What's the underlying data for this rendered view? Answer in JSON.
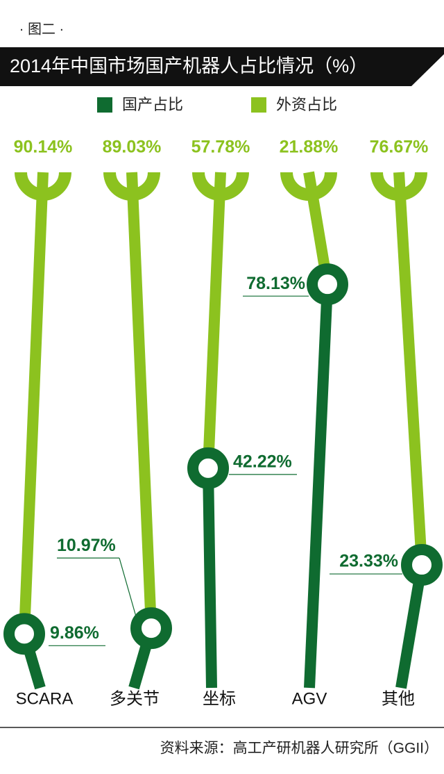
{
  "chart_data": {
    "type": "split_bar",
    "kicker": "· 图二 ·",
    "title": "2014年中国市场国产机器人占比情况（%）",
    "categories": [
      "SCARA",
      "多关节",
      "坐标",
      "AGV",
      "其他"
    ],
    "series": [
      {
        "name": "国产占比",
        "color": "#0f6b30",
        "values": [
          9.86,
          10.97,
          42.22,
          78.13,
          23.33
        ],
        "value_labels": [
          "9.86%",
          "10.97%",
          "42.22%",
          "78.13%",
          "23.33%"
        ]
      },
      {
        "name": "外资占比",
        "color": "#8cc21f",
        "values": [
          90.14,
          89.03,
          57.78,
          21.88,
          76.67
        ],
        "value_labels": [
          "90.14%",
          "89.03%",
          "57.78%",
          "21.88%",
          "76.67%"
        ]
      }
    ],
    "ylim": [
      0,
      100
    ],
    "source": "资料来源：高工产研机器人研究所（GGII）"
  }
}
